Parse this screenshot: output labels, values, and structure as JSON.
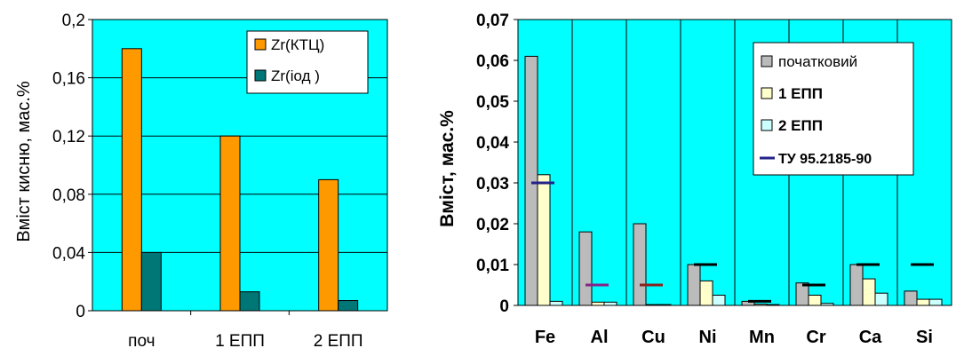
{
  "chart_data": [
    {
      "type": "bar",
      "categories": [
        "поч",
        "1 ЕПП",
        "2 ЕПП"
      ],
      "series": [
        {
          "name": "Zr(КТЦ)",
          "values": [
            0.18,
            0.12,
            0.09
          ],
          "color": "#ff9900"
        },
        {
          "name": "Zr(іод )",
          "values": [
            0.04,
            0.013,
            0.007
          ],
          "color": "#007777"
        }
      ],
      "title": "",
      "xlabel": "",
      "ylabel": "Вміст кисню, мас.%",
      "ylim": [
        0,
        0.2
      ],
      "yticks": [
        "0",
        "0,04",
        "0,08",
        "0,12",
        "0,16",
        "0,2"
      ],
      "grid": true,
      "plot_background": "#00ffff",
      "legend_position": "top-right"
    },
    {
      "type": "bar",
      "categories": [
        "Fe",
        "Al",
        "Cu",
        "Ni",
        "Mn",
        "Cr",
        "Ca",
        "Si"
      ],
      "series": [
        {
          "name": "початковий",
          "values": [
            0.061,
            0.018,
            0.02,
            0.01,
            0.001,
            0.0055,
            0.01,
            0.0035
          ],
          "color": "#bbbbbb"
        },
        {
          "name": "1 ЕПП",
          "values": [
            0.032,
            0.0008,
            0.0002,
            0.006,
            0.0003,
            0.0025,
            0.0065,
            0.0015
          ],
          "color": "#ffffcc"
        },
        {
          "name": "2 ЕПП",
          "values": [
            0.001,
            0.0008,
            0.0002,
            0.0025,
            0.0002,
            0.0005,
            0.003,
            0.0015
          ],
          "color": "#ccffff"
        }
      ],
      "limits": {
        "name": "ТУ 95.2185-90",
        "values": [
          0.03,
          0.005,
          0.005,
          0.01,
          0.001,
          0.005,
          0.01,
          0.01
        ],
        "colors": [
          "#222288",
          "#882288",
          "#882222",
          "#000000",
          "#000000",
          "#000000",
          "#000000",
          "#000000"
        ]
      },
      "title": "",
      "xlabel": "",
      "ylabel": "Вміст,  мас.%",
      "ylim": [
        0,
        0.07
      ],
      "yticks": [
        "0",
        "0,01",
        "0,02",
        "0,03",
        "0,04",
        "0,05",
        "0,06",
        "0,07"
      ],
      "grid": true,
      "plot_background": "#00ffff",
      "legend_position": "top-right"
    }
  ]
}
